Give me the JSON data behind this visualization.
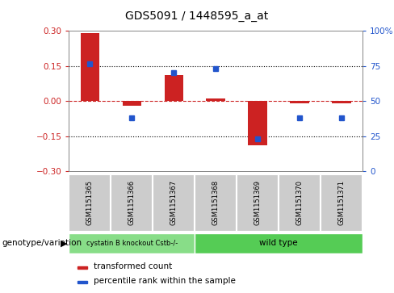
{
  "title": "GDS5091 / 1448595_a_at",
  "samples": [
    "GSM1151365",
    "GSM1151366",
    "GSM1151367",
    "GSM1151368",
    "GSM1151369",
    "GSM1151370",
    "GSM1151371"
  ],
  "bar_values": [
    0.29,
    -0.02,
    0.11,
    0.01,
    -0.19,
    -0.01,
    -0.01
  ],
  "dot_values": [
    0.16,
    -0.07,
    0.12,
    0.14,
    -0.16,
    -0.07,
    -0.07
  ],
  "ylim_left": [
    -0.3,
    0.3
  ],
  "ylim_right": [
    0,
    100
  ],
  "yticks_left": [
    -0.3,
    -0.15,
    0.0,
    0.15,
    0.3
  ],
  "yticks_right": [
    0,
    25,
    50,
    75,
    100
  ],
  "bar_color": "#cc2222",
  "dot_color": "#2255cc",
  "zero_line_color": "#cc2222",
  "groups": [
    {
      "label": "cystatin B knockout Cstb-/-",
      "span": [
        0,
        2
      ],
      "color": "#88dd88"
    },
    {
      "label": "wild type",
      "span": [
        3,
        6
      ],
      "color": "#55cc55"
    }
  ],
  "legend_items": [
    {
      "label": "transformed count",
      "color": "#cc2222"
    },
    {
      "label": "percentile rank within the sample",
      "color": "#2255cc"
    }
  ],
  "genotype_label": "genotype/variation",
  "sample_box_color": "#cccccc",
  "spine_color": "#888888"
}
